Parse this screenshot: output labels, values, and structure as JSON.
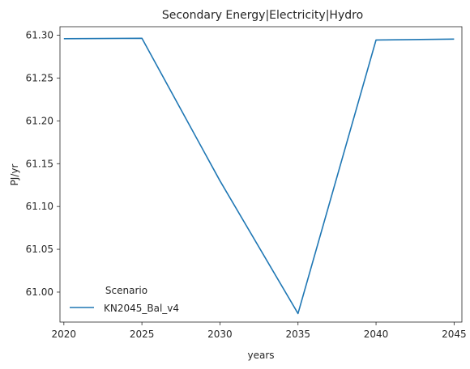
{
  "chart_data": {
    "type": "line",
    "title": "Secondary Energy|Electricity|Hydro",
    "xlabel": "years",
    "ylabel": "PJ/yr",
    "x": [
      2020,
      2025,
      2030,
      2035,
      2040,
      2045
    ],
    "xticks": [
      "2020",
      "2025",
      "2030",
      "2035",
      "2040",
      "2045"
    ],
    "xlim": [
      2019.75,
      2045.5
    ],
    "yticks": [
      "61.00",
      "61.05",
      "61.10",
      "61.15",
      "61.20",
      "61.25",
      "61.30"
    ],
    "ylim": [
      60.965,
      61.31
    ],
    "series": [
      {
        "name": "KN2045_Bal_v4",
        "color": "#1f77b4",
        "values": [
          61.296,
          61.2965,
          61.13,
          60.975,
          61.2945,
          61.2955
        ]
      }
    ],
    "legend": {
      "title": "Scenario",
      "placement": "lower-left"
    },
    "grid": false
  }
}
